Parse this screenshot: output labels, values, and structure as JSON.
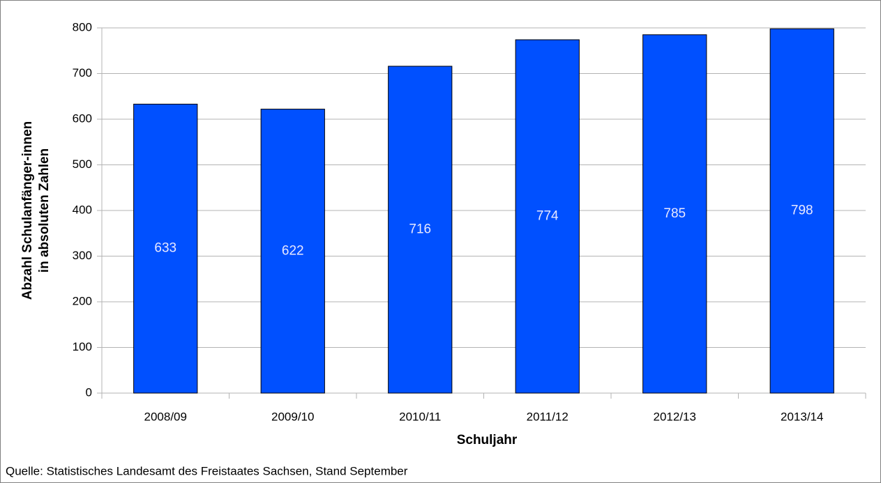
{
  "chart_data": {
    "type": "bar",
    "categories": [
      "2008/09",
      "2009/10",
      "2010/11",
      "2011/12",
      "2012/13",
      "2013/14"
    ],
    "values": [
      633,
      622,
      716,
      774,
      785,
      798
    ],
    "color": "#0050ff",
    "ylim": [
      0,
      800
    ],
    "yticks": [
      0,
      100,
      200,
      300,
      400,
      500,
      600,
      700,
      800
    ],
    "grid": true,
    "xlabel": "Schuljahr",
    "ylabel": [
      "Abzahl Schulanfänger-innen",
      "in absoluten Zahlen"
    ],
    "note": "Quelle: Statistisches Landesamt des Freistaates Sachsen, Stand September"
  }
}
